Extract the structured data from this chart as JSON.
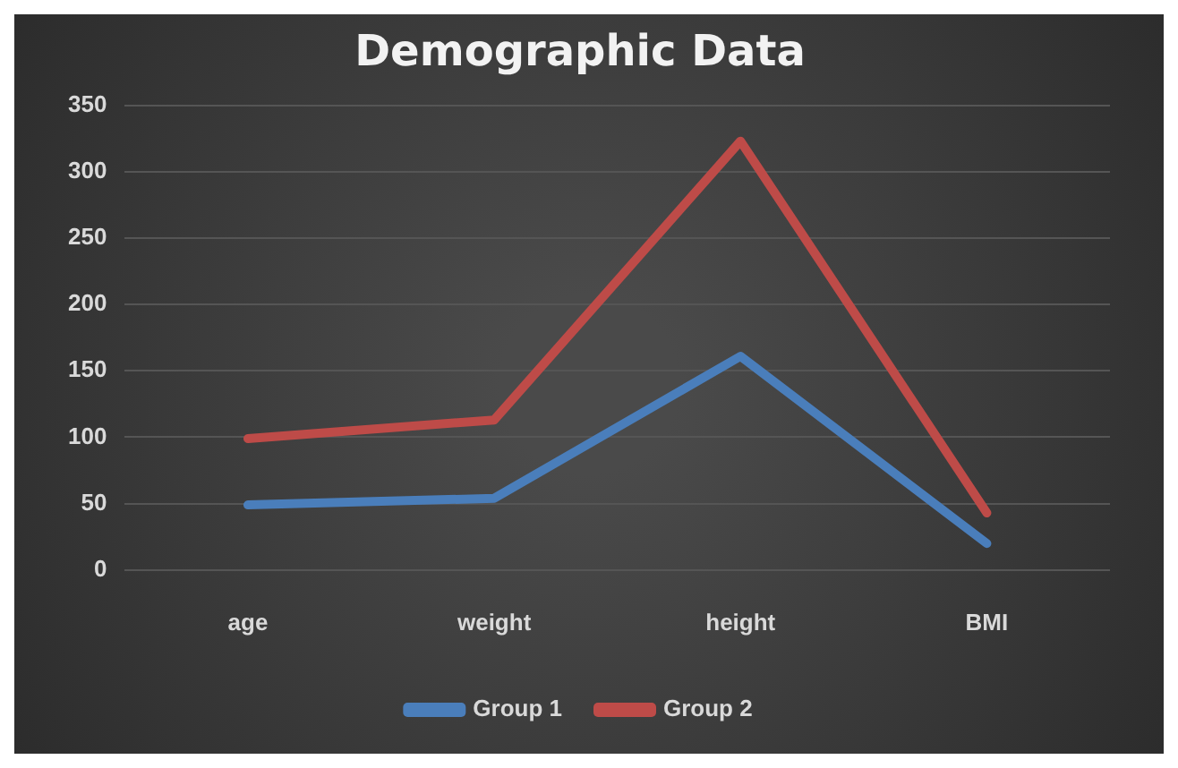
{
  "chart_data": {
    "type": "line",
    "title": "Demographic Data",
    "categories": [
      "age",
      "weight",
      "height",
      "BMI"
    ],
    "series": [
      {
        "name": "Group 1",
        "color": "#4a7ebb",
        "values": [
          49,
          54,
          161,
          20
        ]
      },
      {
        "name": "Group 2",
        "color": "#be4b48",
        "values": [
          99,
          113,
          323,
          43
        ]
      }
    ],
    "ylim": [
      0,
      350
    ],
    "yticks": [
      0,
      50,
      100,
      150,
      200,
      250,
      300,
      350
    ],
    "grid": "y",
    "legend": "bottom",
    "marker": "none",
    "line_style": "solid"
  }
}
